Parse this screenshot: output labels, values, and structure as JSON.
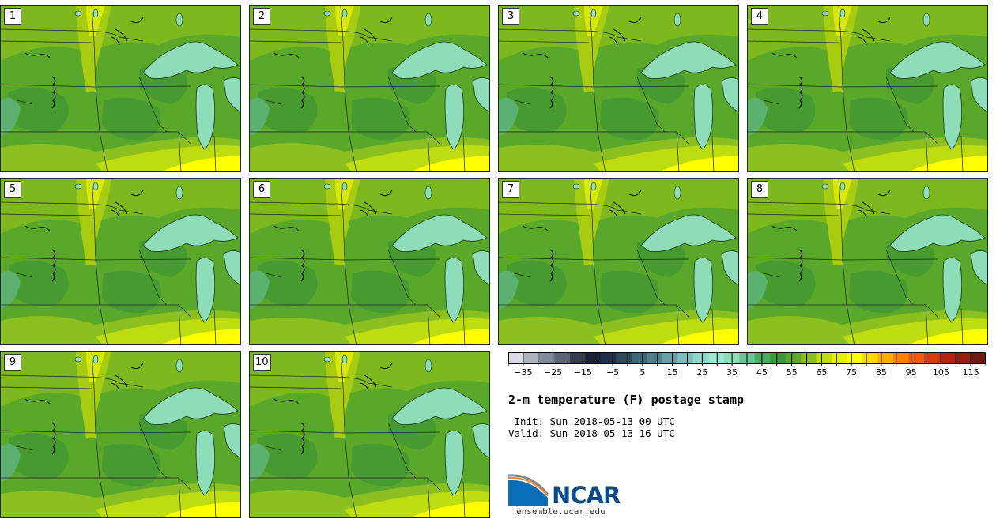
{
  "stamps": [
    {
      "label": "1"
    },
    {
      "label": "2"
    },
    {
      "label": "3"
    },
    {
      "label": "4"
    },
    {
      "label": "5"
    },
    {
      "label": "6"
    },
    {
      "label": "7"
    },
    {
      "label": "8"
    },
    {
      "label": "9"
    },
    {
      "label": "10"
    }
  ],
  "colorbar": {
    "colors": [
      "#d9dde3",
      "#aab2bd",
      "#7f8a9a",
      "#5a6478",
      "#343c52",
      "#1a2238",
      "#1d3148",
      "#2b4a5e",
      "#3d6678",
      "#4f8090",
      "#64a0ab",
      "#7bbcbe",
      "#8fd5cb",
      "#9fe6d4",
      "#8fdcb8",
      "#6cc296",
      "#4caa62",
      "#3c963a",
      "#5aa82a",
      "#8cc020",
      "#bedc10",
      "#e6f000",
      "#ffff00",
      "#ffd800",
      "#ffac00",
      "#ff8000",
      "#f05a0a",
      "#d83a10",
      "#b82010",
      "#962010",
      "#6e1a0e"
    ],
    "tick_labels": [
      "−35",
      "−25",
      "−15",
      "−5",
      "5",
      "15",
      "25",
      "35",
      "45",
      "55",
      "65",
      "75",
      "85",
      "95",
      "105",
      "115"
    ],
    "min": -40,
    "max": 120,
    "step": 5
  },
  "title": "2-m temperature (F) postage stamp",
  "init": " Init: Sun 2018-05-13 00 UTC",
  "valid": "Valid: Sun 2018-05-13 16 UTC",
  "logo_text": "NCAR",
  "url": "ensemble.ucar.edu"
}
